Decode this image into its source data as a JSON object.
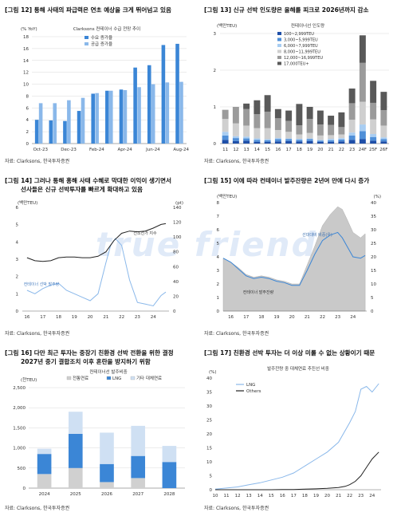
{
  "watermark": "true friend",
  "colors": {
    "dark": "#4a4a4a",
    "mid": "#8c8c8c",
    "light": "#c8c8c8",
    "blue": "#3b86d6",
    "lightblue": "#8ab8ea",
    "navy": "#27418c",
    "gridline": "#d9d9d9"
  },
  "panels": [
    {
      "title": "[그림 12] 통해 사태의 파급력은 연초 예상을 크게 뛰어넘고 있음",
      "source": "자료: Clarksons, 한국투자증권"
    },
    {
      "title": "[그림 13] 신규 선박 인도량은 올해를 피크로 2026년까지 감소",
      "source": "자료: Clarksons, 한국투자증권"
    },
    {
      "title": "[그림 14] 그러나 통해 홍해 사태 수혜로 막대한 이익이 생기면서 선사들은 신규 선박투자를 빠르게 확대하고 있음",
      "title_line1": "[그림 14] 그러나 통해 홍해 사태 수혜로 막대한 이익이 생기면서",
      "title_line2": "선사들은 신규 선박투자를 빠르게 확대하고 있음",
      "source": "자료: Clarksons, 한국투자증권"
    },
    {
      "title": "[그림 15] 이에 따라 컨테이너 발주잔량은 2년여 만에 다시 증가",
      "source": "자료: Clarksons, 한국투자증권"
    },
    {
      "title": "[그림 16] 다만 최근 투자는 중장기 친환경 선박 전환을 위한 결정",
      "title_line1": "[그림 16] 다만 최근 투자는 중장기 친환경 선박 전환을 위한 결정",
      "title_line2": "2027년 중기 결합조치 이후 혼란을 방지하기 위함",
      "source": "자료: Clarksons, 한국투자증권"
    },
    {
      "title": "[그림 17] 친환경 선박 투자는 더 이상 미룰 수 없는 상황이기 때문",
      "source": "자료: Clarksons, 한국투자증권"
    }
  ],
  "chart_data": [
    {
      "type": "bar",
      "title": "Clarksons 컨테이너 수급 전망 추이",
      "ylabel": "(% YoY)",
      "ylim": [
        0,
        18
      ],
      "yticks": [
        0,
        2,
        4,
        6,
        8,
        10,
        12,
        14,
        16,
        18
      ],
      "xlabels": [
        "Oct-23",
        "Dec-23",
        "Feb-24",
        "Apr-24",
        "Jun-24",
        "Aug-24"
      ],
      "series": [
        {
          "name": "수요 증가율",
          "values": [
            4.0,
            3.9,
            3.8,
            5.5,
            8.4,
            8.9,
            9.1,
            12.8,
            13.2,
            16.6,
            16.8
          ]
        },
        {
          "name": "공급 증가율",
          "values": [
            6.8,
            6.8,
            7.3,
            7.7,
            8.5,
            8.9,
            9.0,
            9.5,
            10.0,
            10.3,
            10.4
          ]
        }
      ]
    },
    {
      "type": "bar",
      "title": "컨테이너선 인도량",
      "ylabel": "(백만TEU)",
      "ylim": [
        0,
        3
      ],
      "yticks": [
        0,
        1,
        2,
        3
      ],
      "categories": [
        "11",
        "12",
        "13",
        "14",
        "15",
        "16",
        "17",
        "18",
        "19",
        "20",
        "21",
        "22",
        "23",
        "24F",
        "25F",
        "26F"
      ],
      "series": [
        {
          "name": "100~2,999TEU",
          "values": [
            0.1,
            0.07,
            0.08,
            0.05,
            0.05,
            0.06,
            0.07,
            0.06,
            0.07,
            0.05,
            0.05,
            0.06,
            0.1,
            0.12,
            0.08,
            0.06
          ]
        },
        {
          "name": "3,000~5,999TEU",
          "values": [
            0.12,
            0.08,
            0.06,
            0.05,
            0.04,
            0.06,
            0.05,
            0.04,
            0.05,
            0.03,
            0.04,
            0.05,
            0.12,
            0.22,
            0.1,
            0.06
          ]
        },
        {
          "name": "6,000~7,999TEU",
          "values": [
            0.1,
            0.05,
            0.05,
            0.04,
            0.03,
            0.03,
            0.02,
            0.03,
            0.02,
            0.02,
            0.04,
            0.04,
            0.08,
            0.18,
            0.08,
            0.05
          ]
        },
        {
          "name": "8,000~11,999TEU",
          "values": [
            0.35,
            0.35,
            0.3,
            0.28,
            0.3,
            0.22,
            0.18,
            0.12,
            0.15,
            0.12,
            0.1,
            0.1,
            0.35,
            0.62,
            0.4,
            0.32
          ]
        },
        {
          "name": "12,000~16,999TEU",
          "values": [
            0.25,
            0.45,
            0.45,
            0.38,
            0.45,
            0.32,
            0.3,
            0.25,
            0.38,
            0.3,
            0.28,
            0.2,
            0.45,
            1.06,
            0.45,
            0.42
          ]
        },
        {
          "name": "17,000TEU+",
          "values": [
            0.0,
            0.0,
            0.15,
            0.38,
            0.45,
            0.25,
            0.28,
            0.58,
            0.33,
            0.38,
            0.25,
            0.4,
            0.4,
            0.75,
            0.6,
            0.5
          ]
        }
      ]
    },
    {
      "type": "line",
      "ylabel_left": "(백만TEU)",
      "ylabel_right": "(pt)",
      "ylim_left": [
        0,
        6
      ],
      "ylim_right": [
        0,
        140
      ],
      "yticks_left": [
        0,
        1,
        2,
        3,
        4,
        5,
        6
      ],
      "yticks_right": [
        0,
        20,
        40,
        60,
        80,
        100,
        120,
        140
      ],
      "xlabels": [
        "16",
        "17",
        "18",
        "19",
        "20",
        "21",
        "22",
        "23",
        "24"
      ],
      "series": [
        {
          "name": "컨테이너 선박 발주량",
          "axis": "left",
          "x": [
            2016,
            2016.5,
            2017,
            2017.5,
            2018,
            2018.5,
            2019,
            2019.5,
            2020,
            2020.5,
            2021,
            2021.3,
            2021.6,
            2022,
            2022.5,
            2023,
            2023.5,
            2024,
            2024.5,
            2024.8
          ],
          "y": [
            1.2,
            1.0,
            1.3,
            1.5,
            1.6,
            1.2,
            1.0,
            0.8,
            0.6,
            1.0,
            2.8,
            3.8,
            4.2,
            3.8,
            1.8,
            0.5,
            0.4,
            0.3,
            0.9,
            1.1
          ]
        },
        {
          "name": "신조선가 지수",
          "axis": "right",
          "x": [
            2016,
            2016.5,
            2017,
            2017.5,
            2018,
            2018.5,
            2019,
            2019.5,
            2020,
            2020.5,
            2021,
            2021.5,
            2022,
            2022.5,
            2023,
            2023.5,
            2024,
            2024.5,
            2024.8
          ],
          "y": [
            72,
            68,
            67,
            68,
            72,
            73,
            73,
            72,
            72,
            74,
            80,
            95,
            105,
            108,
            107,
            108,
            112,
            117,
            118
          ]
        }
      ],
      "legend": [
        "신조선가 지수",
        "컨테이너 선박 발주량"
      ]
    },
    {
      "type": "area",
      "ylabel_left": "(백만TEU)",
      "ylabel_right": "(%)",
      "ylim_left": [
        0,
        8
      ],
      "ylim_right": [
        0,
        40
      ],
      "yticks_left": [
        0,
        1,
        2,
        3,
        4,
        5,
        6,
        7,
        8
      ],
      "yticks_right": [
        0,
        5,
        10,
        15,
        20,
        25,
        30,
        35,
        40
      ],
      "xlabels": [
        "16",
        "17",
        "18",
        "19",
        "20",
        "21",
        "22",
        "23",
        "24"
      ],
      "series": [
        {
          "name": "컨테이너 발주잔량",
          "axis": "left",
          "x": [
            2015.5,
            2016,
            2016.5,
            2017,
            2017.5,
            2018,
            2018.5,
            2019,
            2019.5,
            2020,
            2020.5,
            2021,
            2021.5,
            2022,
            2022.5,
            2023,
            2023.3,
            2023.6,
            2024,
            2024.5,
            2024.8
          ],
          "y": [
            3.9,
            3.6,
            3.2,
            2.7,
            2.5,
            2.6,
            2.5,
            2.3,
            2.2,
            2.0,
            2.0,
            3.4,
            4.8,
            6.3,
            7.1,
            7.7,
            7.5,
            6.8,
            5.8,
            5.4,
            5.7
          ]
        },
        {
          "name": "선대대비 비중(우)",
          "axis": "right",
          "x": [
            2015.5,
            2016,
            2016.5,
            2017,
            2017.5,
            2018,
            2018.5,
            2019,
            2019.5,
            2020,
            2020.5,
            2021,
            2021.5,
            2022,
            2022.5,
            2023,
            2023.3,
            2023.6,
            2024,
            2024.5,
            2024.8
          ],
          "y": [
            19.5,
            18,
            15.5,
            13,
            12,
            12.5,
            12,
            11,
            10.5,
            9.5,
            9.5,
            15,
            21,
            26,
            28,
            29,
            27,
            24,
            20,
            19.5,
            20.5
          ]
        }
      ],
      "legend": [
        "선대대비 비중(우)",
        "컨테이너 발주잔량"
      ]
    },
    {
      "type": "bar",
      "title": "컨테이너선 발주비중",
      "ylabel": "(천TEU)",
      "ylim": [
        0,
        2500
      ],
      "yticks": [
        0,
        500,
        1000,
        1500,
        2000,
        2500
      ],
      "categories": [
        "2024",
        "2025",
        "2026",
        "2027",
        "2028"
      ],
      "series": [
        {
          "name": "전통연료",
          "values": [
            350,
            500,
            150,
            250,
            0
          ]
        },
        {
          "name": "LNG",
          "values": [
            500,
            850,
            450,
            550,
            650
          ]
        },
        {
          "name": "기타 대체연료",
          "values": [
            130,
            550,
            780,
            750,
            400
          ]
        }
      ]
    },
    {
      "type": "line",
      "title": "발주잔량 중 대체연료 추진선 비중",
      "ylabel": "(%)",
      "ylim": [
        0,
        40
      ],
      "yticks": [
        0,
        5,
        10,
        15,
        20,
        25,
        30,
        35,
        40
      ],
      "xlabels": [
        "10",
        "11",
        "12",
        "13",
        "14",
        "15",
        "16",
        "17",
        "18",
        "19",
        "20",
        "21",
        "22",
        "23",
        "24"
      ],
      "series": [
        {
          "name": "LNG",
          "x": [
            2010,
            2011,
            2012,
            2013,
            2014,
            2015,
            2016,
            2017,
            2018,
            2019,
            2020,
            2021,
            2022,
            2022.5,
            2023,
            2023.5,
            2024,
            2024.6
          ],
          "y": [
            0.2,
            0.6,
            1.0,
            1.8,
            2.5,
            3.5,
            4.5,
            6,
            8.5,
            11,
            13.5,
            17,
            24,
            28,
            36,
            37,
            35,
            38
          ]
        },
        {
          "name": "Others",
          "x": [
            2010,
            2011,
            2012,
            2013,
            2014,
            2015,
            2016,
            2017,
            2018,
            2019,
            2020,
            2021,
            2021.6,
            2022,
            2022.5,
            2023,
            2023.5,
            2024,
            2024.6
          ],
          "y": [
            0,
            0,
            0,
            0,
            0,
            0,
            0.1,
            0.1,
            0.2,
            0.3,
            0.5,
            0.8,
            1.2,
            1.8,
            3,
            5,
            8,
            11,
            13.5
          ]
        }
      ]
    }
  ]
}
